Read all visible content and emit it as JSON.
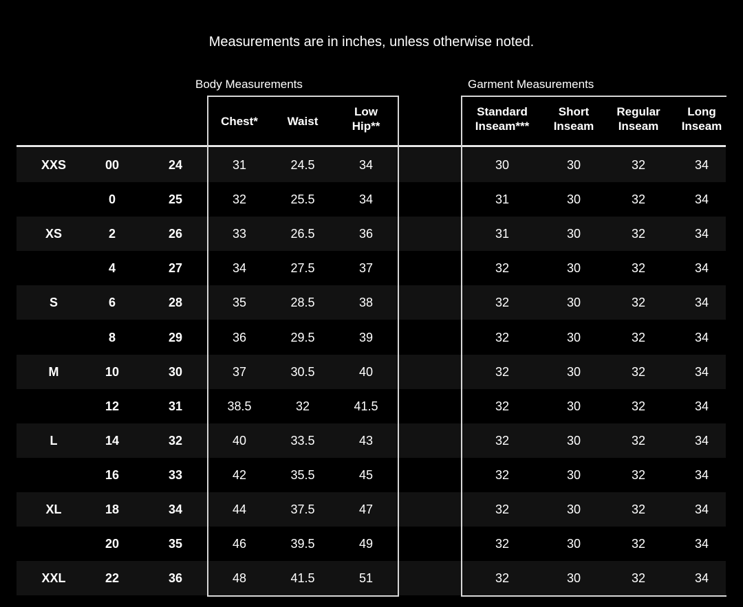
{
  "note": "Measurements are in inches, unless otherwise noted.",
  "body_title": "Body Measurements",
  "garment_title": "Garment Measurements",
  "headers": {
    "chest": "Chest*",
    "waist": "Waist",
    "low_hip": [
      "Low",
      "Hip**"
    ],
    "standard_inseam": [
      "Standard",
      "Inseam***"
    ],
    "short_inseam": [
      "Short",
      "Inseam"
    ],
    "regular_inseam": [
      "Regular",
      "Inseam"
    ],
    "long_inseam": [
      "Long",
      "Inseam"
    ]
  },
  "rows": [
    [
      "XXS",
      "00",
      "24",
      "31",
      "24.5",
      "34",
      "30",
      "30",
      "32",
      "34"
    ],
    [
      "",
      "0",
      "25",
      "32",
      "25.5",
      "34",
      "31",
      "30",
      "32",
      "34"
    ],
    [
      "XS",
      "2",
      "26",
      "33",
      "26.5",
      "36",
      "31",
      "30",
      "32",
      "34"
    ],
    [
      "",
      "4",
      "27",
      "34",
      "27.5",
      "37",
      "32",
      "30",
      "32",
      "34"
    ],
    [
      "S",
      "6",
      "28",
      "35",
      "28.5",
      "38",
      "32",
      "30",
      "32",
      "34"
    ],
    [
      "",
      "8",
      "29",
      "36",
      "29.5",
      "39",
      "32",
      "30",
      "32",
      "34"
    ],
    [
      "M",
      "10",
      "30",
      "37",
      "30.5",
      "40",
      "32",
      "30",
      "32",
      "34"
    ],
    [
      "",
      "12",
      "31",
      "38.5",
      "32",
      "41.5",
      "32",
      "30",
      "32",
      "34"
    ],
    [
      "L",
      "14",
      "32",
      "40",
      "33.5",
      "43",
      "32",
      "30",
      "32",
      "34"
    ],
    [
      "",
      "16",
      "33",
      "42",
      "35.5",
      "45",
      "32",
      "30",
      "32",
      "34"
    ],
    [
      "XL",
      "18",
      "34",
      "44",
      "37.5",
      "47",
      "32",
      "30",
      "32",
      "34"
    ],
    [
      "",
      "20",
      "35",
      "46",
      "39.5",
      "49",
      "32",
      "30",
      "32",
      "34"
    ],
    [
      "XXL",
      "22",
      "36",
      "48",
      "41.5",
      "51",
      "32",
      "30",
      "32",
      "34"
    ]
  ],
  "colors": {
    "background": "#000000",
    "row_alt": "#121212",
    "border": "#d8d8d8"
  }
}
